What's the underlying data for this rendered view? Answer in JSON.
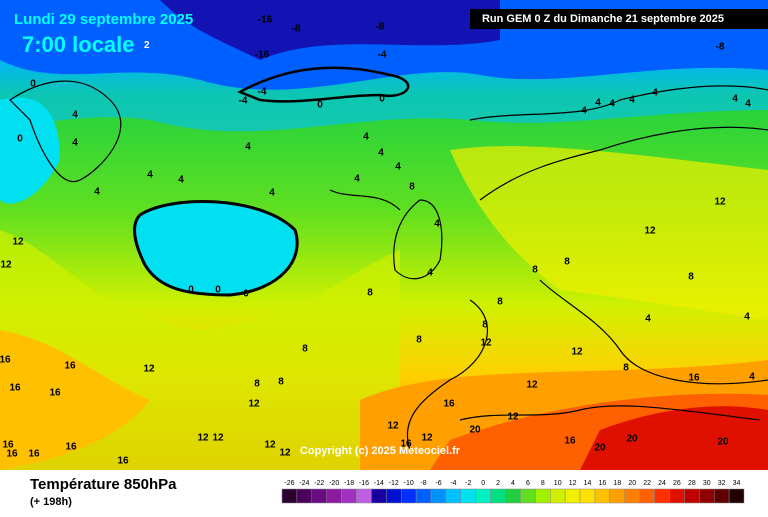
{
  "header": {
    "date": "Lundi 29 septembre 2025",
    "time": "7:00 locale",
    "time_suffix": "2",
    "run": "Run GEM 0 Z du Dimanche 21 septembre 2025"
  },
  "copyright": "Copyright (c) 2025 Meteociel.fr",
  "footer": {
    "title": "Température 850hPa",
    "lead": "(+ 198h)"
  },
  "colorbar": {
    "ticks": [
      -26,
      -24,
      -22,
      -20,
      -18,
      -16,
      -14,
      -12,
      -10,
      -8,
      -6,
      -4,
      -2,
      0,
      2,
      4,
      6,
      8,
      10,
      12,
      14,
      16,
      18,
      20,
      22,
      24,
      26,
      28,
      30,
      32,
      34
    ],
    "colors": [
      "#2b0030",
      "#4c005a",
      "#6a0a80",
      "#8a1aa0",
      "#a030c0",
      "#c060e0",
      "#1800a0",
      "#0010d0",
      "#0030ff",
      "#0060ff",
      "#0090ff",
      "#00c0ff",
      "#00e0f0",
      "#00f0c0",
      "#00e080",
      "#20d040",
      "#60e020",
      "#a0f000",
      "#d0f000",
      "#f0f000",
      "#ffe000",
      "#ffc000",
      "#ffa000",
      "#ff8000",
      "#ff6000",
      "#ff3000",
      "#e01000",
      "#c00000",
      "#900000",
      "#600000",
      "#200000"
    ]
  },
  "contour_labels": [
    -16,
    -8,
    -8,
    -16,
    -4,
    -8,
    -4,
    -4,
    0,
    0,
    0,
    4,
    0,
    4,
    4,
    4,
    4,
    4,
    4,
    4,
    4,
    4,
    4,
    8,
    4,
    4,
    8,
    0,
    0,
    0,
    12,
    12,
    16,
    16,
    16,
    16,
    12,
    8,
    8,
    8,
    12,
    12,
    12,
    12,
    12,
    16,
    16,
    16,
    16,
    16,
    12,
    16,
    12,
    16,
    12,
    20,
    16,
    20,
    20,
    20,
    16,
    12,
    12,
    8,
    8,
    8,
    8,
    12,
    8,
    8,
    12,
    4,
    4,
    4,
    8,
    12,
    4,
    4,
    4,
    4,
    4,
    4,
    4
  ]
}
